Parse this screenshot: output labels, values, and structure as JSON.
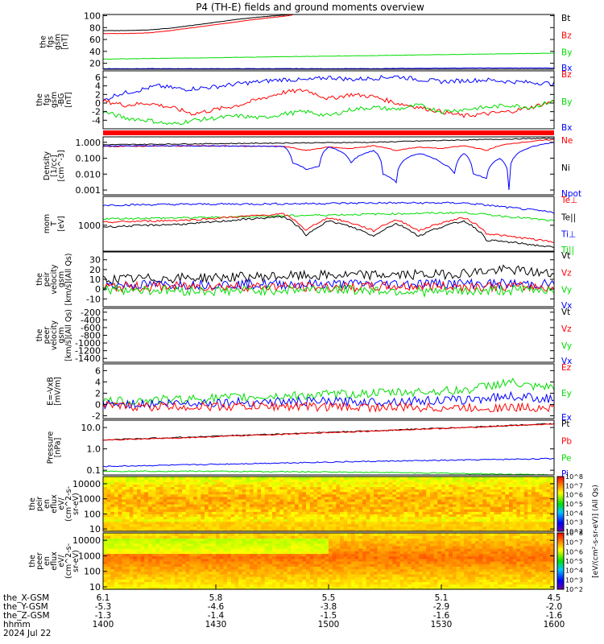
{
  "title": "P4 (TH-E) fields and ground moments overview",
  "colors": {
    "black": "#000000",
    "red": "#ff0000",
    "green": "#00dd00",
    "blue": "#0000ff"
  },
  "chart_data": [
    {
      "id": "fgs-gsm",
      "type": "line",
      "ylabel_lines": [
        "the",
        "fgs",
        "gsm",
        "[nT]"
      ],
      "yticks": [
        "20",
        "40",
        "60",
        "80",
        "100"
      ],
      "ylim": [
        10,
        102
      ],
      "legend": [
        {
          "label": "Bt",
          "color": "black"
        },
        {
          "label": "Bz",
          "color": "red"
        },
        {
          "label": "By",
          "color": "green"
        },
        {
          "label": "Bx",
          "color": "blue"
        }
      ],
      "series": [
        {
          "name": "Bt",
          "color": "black",
          "x": [
            0,
            0.05,
            0.1,
            0.15,
            0.2,
            0.25,
            0.3,
            0.35,
            0.4,
            0.42
          ],
          "y": [
            75,
            75,
            76,
            79,
            84,
            89,
            94,
            98,
            101,
            102
          ]
        },
        {
          "name": "Bz",
          "color": "red",
          "x": [
            0,
            0.05,
            0.1,
            0.15,
            0.2,
            0.25,
            0.3,
            0.35,
            0.4,
            0.42
          ],
          "y": [
            70,
            70,
            71,
            75,
            80,
            85,
            90,
            95,
            99,
            101
          ]
        },
        {
          "name": "By",
          "color": "green",
          "x": [
            0,
            0.1,
            0.2,
            0.3,
            0.4,
            0.5,
            0.6,
            0.7,
            0.8,
            0.9,
            1.0
          ],
          "y": [
            27,
            28,
            29,
            30,
            31,
            32,
            33,
            34,
            35,
            36,
            37
          ]
        },
        {
          "name": "Bx",
          "color": "blue",
          "x": [
            0,
            0.2,
            0.4,
            0.6,
            0.8,
            1.0
          ],
          "y": [
            11,
            11,
            11,
            11,
            12,
            12
          ]
        }
      ]
    },
    {
      "id": "fgs-dsl",
      "type": "line",
      "ylabel_lines": [
        "the",
        "fgs",
        "gsm",
        "-BG",
        "[nT]"
      ],
      "yticks": [
        "-4",
        "-2",
        "0",
        "2",
        "4",
        "6"
      ],
      "ylim": [
        -6,
        7.5
      ],
      "legend": [
        {
          "label": "Bz",
          "color": "red"
        },
        {
          "label": "By",
          "color": "green"
        },
        {
          "label": "Bx",
          "color": "blue"
        }
      ],
      "series": [
        {
          "name": "Bx",
          "color": "blue",
          "x": [
            0,
            0.03,
            0.08,
            0.12,
            0.18,
            0.25,
            0.3,
            0.35,
            0.4,
            0.45,
            0.5,
            0.55,
            0.6,
            0.65,
            0.7,
            0.75,
            0.8,
            0.85,
            0.9,
            0.95,
            1.0
          ],
          "y": [
            0.5,
            2,
            3,
            4,
            3.2,
            3.8,
            4.5,
            5,
            5.5,
            5.3,
            6,
            5.5,
            5.8,
            6.2,
            5.5,
            5,
            5.2,
            5.4,
            5,
            4.8,
            4.5
          ]
        },
        {
          "name": "Bz",
          "color": "red",
          "x": [
            0,
            0.05,
            0.1,
            0.15,
            0.2,
            0.25,
            0.3,
            0.35,
            0.4,
            0.45,
            0.5,
            0.55,
            0.6,
            0.65,
            0.7,
            0.75,
            0.8,
            0.85,
            0.9,
            0.95,
            1.0
          ],
          "y": [
            0.5,
            -0.5,
            0,
            -1,
            -2.5,
            -1.5,
            -0.5,
            1,
            2.5,
            3,
            1,
            2,
            1.5,
            0,
            -1,
            -2,
            -3,
            -2.5,
            -2,
            -1,
            0.5
          ]
        },
        {
          "name": "By",
          "color": "green",
          "x": [
            0,
            0.05,
            0.1,
            0.15,
            0.2,
            0.25,
            0.3,
            0.35,
            0.4,
            0.45,
            0.5,
            0.55,
            0.6,
            0.65,
            0.7,
            0.75,
            0.8,
            0.85,
            0.9,
            0.95,
            1.0
          ],
          "y": [
            -2,
            -3.5,
            -4,
            -5,
            -4,
            -3.5,
            -3,
            -3.5,
            -2.5,
            -2,
            -3,
            -1.5,
            -1,
            -1.5,
            -0.5,
            -2,
            -1.5,
            -1,
            -0.5,
            -1,
            0.5
          ]
        }
      ]
    },
    {
      "id": "flag-bar",
      "type": "bar",
      "color": "red"
    },
    {
      "id": "density",
      "type": "line",
      "yscale": "log",
      "ylabel_lines": [
        "Density",
        "[1/cc]",
        "[cm^-3]"
      ],
      "yticks": [
        "0.001",
        "0.010",
        "0.100",
        "1.000"
      ],
      "ylim": [
        0.0005,
        2.2
      ],
      "legend": [
        {
          "label": "Ne",
          "color": "red"
        },
        {
          "label": "Ni",
          "color": "black"
        },
        {
          "label": "Npot",
          "color": "blue"
        }
      ],
      "series": [
        {
          "name": "Ni",
          "color": "black",
          "x": [
            0,
            0.2,
            0.4,
            0.6,
            0.8,
            1.0
          ],
          "y": [
            0.7,
            0.8,
            0.9,
            1.0,
            1.4,
            1.8
          ]
        },
        {
          "name": "Ne",
          "color": "red",
          "x": [
            0,
            0.2,
            0.4,
            0.45,
            0.5,
            0.55,
            0.6,
            0.65,
            0.7,
            0.75,
            0.8,
            0.85,
            0.9,
            1.0
          ],
          "y": [
            0.55,
            0.6,
            0.55,
            0.3,
            0.5,
            0.4,
            0.6,
            0.3,
            0.5,
            0.4,
            0.6,
            0.3,
            0.8,
            1.5
          ]
        },
        {
          "name": "Npot",
          "color": "blue",
          "x": [
            0,
            0.2,
            0.4,
            0.42,
            0.45,
            0.48,
            0.5,
            0.55,
            0.6,
            0.62,
            0.65,
            0.7,
            0.75,
            0.78,
            0.8,
            0.82,
            0.85,
            0.88,
            0.9,
            0.95,
            1.0
          ],
          "y": [
            0.6,
            0.6,
            0.55,
            0.05,
            0.02,
            0.03,
            0.5,
            0.05,
            0.3,
            0.01,
            0.003,
            0.2,
            0.05,
            0.01,
            0.2,
            0.01,
            0.005,
            0.1,
            0.001,
            0.5,
            1.0
          ]
        }
      ]
    },
    {
      "id": "temperature",
      "type": "line",
      "yscale": "log",
      "ylabel_lines": [
        "mom",
        "T",
        "[eV]"
      ],
      "yticks": [
        "1000"
      ],
      "ylim": [
        200,
        6000
      ],
      "legend": [
        {
          "label": "Te⊥",
          "color": "red"
        },
        {
          "label": "Te||",
          "color": "black"
        },
        {
          "label": "Ti⊥",
          "color": "blue"
        },
        {
          "label": "Ti||",
          "color": "green"
        }
      ],
      "series": [
        {
          "name": "Ti⊥",
          "color": "blue",
          "x": [
            0,
            0.2,
            0.4,
            0.6,
            0.8,
            0.9,
            1.0
          ],
          "y": [
            3500,
            3700,
            3800,
            4000,
            4000,
            3000,
            2200
          ]
        },
        {
          "name": "Ti||",
          "color": "green",
          "x": [
            0,
            0.2,
            0.4,
            0.6,
            0.8,
            0.9,
            1.0
          ],
          "y": [
            1500,
            1600,
            1800,
            2000,
            2200,
            1700,
            1300
          ]
        },
        {
          "name": "Te⊥",
          "color": "red",
          "x": [
            0,
            0.2,
            0.4,
            0.45,
            0.5,
            0.6,
            0.65,
            0.7,
            0.8,
            0.85,
            0.9,
            1.0
          ],
          "y": [
            1200,
            1400,
            2000,
            700,
            1600,
            700,
            1400,
            700,
            1600,
            600,
            500,
            350
          ]
        },
        {
          "name": "Te||",
          "color": "black",
          "x": [
            0,
            0.2,
            0.4,
            0.45,
            0.5,
            0.6,
            0.65,
            0.7,
            0.8,
            0.85,
            0.9,
            1.0
          ],
          "y": [
            900,
            1100,
            1700,
            500,
            1300,
            500,
            1100,
            500,
            1300,
            400,
            350,
            250
          ]
        }
      ]
    },
    {
      "id": "velocity-peir",
      "type": "line",
      "ylabel_lines": [
        "the",
        "peir",
        "velocity",
        "gsm",
        "[km/s](All Qs)"
      ],
      "yticks": [
        "-10",
        "0",
        "10",
        "20",
        "30"
      ],
      "ylim": [
        -18,
        38
      ],
      "legend": [
        {
          "label": "Vt",
          "color": "black"
        },
        {
          "label": "Vz",
          "color": "red"
        },
        {
          "label": "Vy",
          "color": "green"
        },
        {
          "label": "Vx",
          "color": "blue"
        }
      ],
      "series": [
        {
          "name": "Vt",
          "color": "black",
          "x": [
            0,
            0.25,
            0.5,
            0.75,
            0.9,
            1.0
          ],
          "y": [
            10,
            12,
            14,
            15,
            20,
            15
          ]
        },
        {
          "name": "Vx",
          "color": "blue",
          "x": [
            0,
            0.25,
            0.5,
            0.75,
            1.0
          ],
          "y": [
            4,
            5,
            5,
            6,
            5
          ]
        },
        {
          "name": "Vz",
          "color": "red",
          "x": [
            0,
            0.25,
            0.5,
            0.75,
            1.0
          ],
          "y": [
            2,
            3,
            2,
            3,
            2
          ]
        },
        {
          "name": "Vy",
          "color": "green",
          "x": [
            0,
            0.25,
            0.5,
            0.75,
            1.0
          ],
          "y": [
            0,
            -2,
            0,
            -3,
            0
          ]
        }
      ]
    },
    {
      "id": "velocity-peer",
      "type": "line",
      "ylabel_lines": [
        "the",
        "peer",
        "velocity",
        "gsm",
        "[km/s](All Qs)"
      ],
      "yticks": [
        "-1400",
        "-1200",
        "-1000",
        "-800",
        "-600",
        "-400",
        "-200"
      ],
      "ylim": [
        -1500,
        -100
      ],
      "legend": [
        {
          "label": "Vt",
          "color": "black"
        },
        {
          "label": "Vz",
          "color": "red"
        },
        {
          "label": "Vy",
          "color": "green"
        },
        {
          "label": "Vx",
          "color": "blue"
        }
      ],
      "series": []
    },
    {
      "id": "e-field",
      "type": "line",
      "ylabel_lines": [
        "E=-VxB",
        "[mV/m]"
      ],
      "yticks": [
        "-2",
        "0",
        "2",
        "4",
        "6"
      ],
      "ylim": [
        -2.5,
        7.2
      ],
      "legend": [
        {
          "label": "Ez",
          "color": "red"
        },
        {
          "label": "Ey",
          "color": "green"
        },
        {
          "label": "Ex",
          "color": "blue"
        }
      ],
      "series": [
        {
          "name": "Ey",
          "color": "green",
          "x": [
            0,
            0.2,
            0.4,
            0.6,
            0.8,
            0.9,
            0.95,
            1.0
          ],
          "y": [
            0.5,
            1,
            1.5,
            2,
            2.5,
            4,
            3,
            3
          ]
        },
        {
          "name": "Ex",
          "color": "blue",
          "x": [
            0,
            0.2,
            0.4,
            0.6,
            0.8,
            0.9,
            1.0
          ],
          "y": [
            0,
            0.3,
            0.5,
            0.5,
            0.8,
            1.5,
            1
          ]
        },
        {
          "name": "Ez",
          "color": "red",
          "x": [
            0,
            0.2,
            0.4,
            0.6,
            0.8,
            1.0
          ],
          "y": [
            -0.3,
            -0.4,
            -0.3,
            -0.5,
            -0.6,
            -0.5
          ]
        }
      ]
    },
    {
      "id": "pressure",
      "type": "line",
      "yscale": "log",
      "ylabel_lines": [
        "Pressure",
        "[nPa]"
      ],
      "yticks": [
        "0.1",
        "1.0",
        "10.0"
      ],
      "ylim": [
        0.06,
        22
      ],
      "legend": [
        {
          "label": "Pt",
          "color": "black"
        },
        {
          "label": "Pb",
          "color": "red"
        },
        {
          "label": "Pe",
          "color": "green"
        },
        {
          "label": "Pi",
          "color": "blue"
        }
      ],
      "series": [
        {
          "name": "Pt",
          "color": "black",
          "x": [
            0,
            0.2,
            0.4,
            0.6,
            0.8,
            1.0
          ],
          "y": [
            2.6,
            3.6,
            5.0,
            7.0,
            10.0,
            15.0
          ]
        },
        {
          "name": "Pb",
          "color": "red",
          "x": [
            0,
            0.2,
            0.4,
            0.6,
            0.8,
            1.0
          ],
          "y": [
            2.5,
            3.4,
            4.8,
            6.8,
            9.8,
            14.5
          ]
        },
        {
          "name": "Pi",
          "color": "blue",
          "x": [
            0,
            0.2,
            0.4,
            0.6,
            0.8,
            1.0
          ],
          "y": [
            0.15,
            0.18,
            0.22,
            0.26,
            0.3,
            0.35
          ]
        },
        {
          "name": "Pe",
          "color": "green",
          "x": [
            0,
            0.2,
            0.4,
            0.6,
            0.8,
            0.9,
            1.0
          ],
          "y": [
            0.09,
            0.09,
            0.085,
            0.08,
            0.07,
            0.065,
            0.06
          ]
        }
      ]
    },
    {
      "id": "spec-peir",
      "type": "heatmap",
      "ylabel_lines": [
        "the",
        "peir",
        "en",
        "eflux",
        "eV/",
        "(cm^2-s-",
        "sr-eV)"
      ],
      "yticks": [
        "10",
        "100",
        "1000",
        "10000"
      ],
      "yscale": "log",
      "ylim": [
        7,
        30000
      ]
    },
    {
      "id": "spec-peer",
      "type": "heatmap",
      "ylabel_lines": [
        "the",
        "peer",
        "en",
        "eflux",
        "eV/",
        "(cm^2-s-",
        "sr-eV)"
      ],
      "yticks": [
        "10",
        "100",
        "1000",
        "10000"
      ],
      "yscale": "log",
      "ylim": [
        7,
        30000
      ]
    }
  ],
  "colorbars": [
    {
      "id": "cb-peir",
      "ticks": [
        "10^2",
        "10^3",
        "10^4",
        "10^5",
        "10^6",
        "10^7",
        "10^8"
      ],
      "label": "[eV/(cm²-s-sr-eV)] (All Qs)"
    },
    {
      "id": "cb-peer",
      "ticks": [
        "10^2",
        "10^3",
        "10^4",
        "10^5",
        "10^6",
        "10^7",
        "10^8"
      ],
      "label": "[eV/(cm²-s-sr-eV)] (All Qs)"
    }
  ],
  "xaxis": {
    "rows": [
      {
        "label": "the_X-GSM",
        "values": [
          "6.1",
          "5.8",
          "5.5",
          "5.1",
          "4.5"
        ]
      },
      {
        "label": "the_Y-GSM",
        "values": [
          "-5.3",
          "-4.6",
          "-3.8",
          "-2.9",
          "-2.0"
        ]
      },
      {
        "label": "the_Z-GSM",
        "values": [
          "-1.3",
          "-1.4",
          "-1.5",
          "-1.6",
          "-1.6"
        ]
      },
      {
        "label": "hhmm",
        "values": [
          "1400",
          "1430",
          "1500",
          "1530",
          "1600"
        ]
      }
    ],
    "date_label": "2024 Jul 22"
  }
}
